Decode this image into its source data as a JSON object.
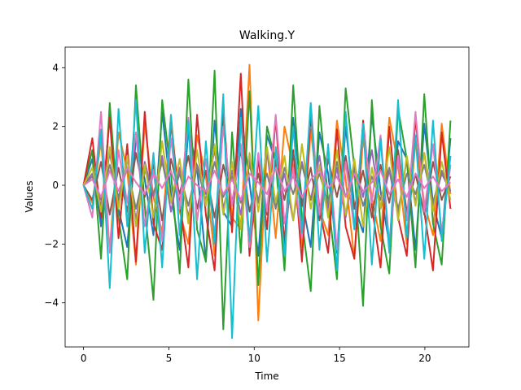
{
  "chart_data": {
    "type": "line",
    "title": "Walking.Y",
    "xlabel": "Time",
    "ylabel": "Values",
    "xlim": [
      -1.08,
      22.58
    ],
    "ylim": [
      -5.5,
      4.7
    ],
    "xticks": [
      0,
      5,
      10,
      15,
      20
    ],
    "yticks": [
      -4,
      -2,
      0,
      2,
      4
    ],
    "x_range": [
      0,
      21.5
    ],
    "grid": false,
    "legend": "none",
    "series": [
      {
        "color": "#1f77b4",
        "values": [
          0.0,
          0.9,
          -1.4,
          2.4,
          -0.8,
          -2.1,
          1.6,
          0.2,
          -1.7,
          2.5,
          -0.3,
          -2.2,
          1.9,
          0.6,
          -2.6,
          2.2,
          -0.9,
          -1.4,
          2.6,
          0.1,
          -2.4,
          1.7,
          0.8,
          -1.9,
          2.3,
          -0.5,
          -2.1,
          1.8,
          0.4,
          -2.3,
          2.0,
          -0.7,
          -1.6,
          2.4,
          -0.2,
          -2.0,
          1.5,
          0.9,
          -2.2,
          2.1,
          -0.6,
          -1.8,
          1.6
        ]
      },
      {
        "color": "#ff7f0e",
        "values": [
          0.0,
          -0.6,
          1.5,
          -2.2,
          1.8,
          0.5,
          -2.7,
          2.1,
          -0.4,
          -1.6,
          2.4,
          -0.9,
          -2.0,
          1.7,
          0.3,
          -2.4,
          2.2,
          -1.1,
          -1.5,
          4.1,
          -4.6,
          1.3,
          -1.8,
          2.0,
          0.6,
          -2.1,
          1.9,
          -0.8,
          -1.7,
          2.2,
          0.2,
          -2.5,
          1.6,
          -0.4,
          -1.9,
          2.3,
          0.7,
          -2.0,
          1.5,
          -0.6,
          -1.7,
          2.1,
          -0.3
        ]
      },
      {
        "color": "#2ca02c",
        "values": [
          0.0,
          1.2,
          -2.5,
          2.8,
          -1.1,
          -3.2,
          3.4,
          -0.7,
          -3.9,
          2.9,
          0.4,
          -3.0,
          3.6,
          -1.5,
          -2.6,
          3.9,
          -4.9,
          1.8,
          -2.3,
          3.2,
          -3.4,
          2.0,
          0.8,
          -2.9,
          3.4,
          -1.2,
          -3.6,
          2.7,
          -0.5,
          -3.2,
          3.3,
          0.6,
          -4.1,
          2.9,
          -1.4,
          -3.0,
          2.6,
          0.9,
          -2.8,
          3.1,
          -1.3,
          -2.7,
          2.2
        ]
      },
      {
        "color": "#d62728",
        "values": [
          0.0,
          1.6,
          -1.1,
          2.3,
          -1.8,
          1.4,
          -2.6,
          2.5,
          -1.3,
          -2.2,
          2.1,
          -0.6,
          -2.8,
          2.4,
          -1.0,
          -2.9,
          2.6,
          -1.6,
          3.8,
          -2.4,
          0.9,
          -1.5,
          2.3,
          -2.1,
          1.2,
          -2.6,
          2.4,
          -0.8,
          -2.3,
          1.9,
          -1.4,
          -2.5,
          2.2,
          -0.7,
          -2.8,
          2.0,
          -1.1,
          -2.4,
          2.3,
          -0.9,
          -2.9,
          1.8,
          -0.8
        ]
      },
      {
        "color": "#9467bd",
        "values": [
          0.0,
          0.4,
          -0.7,
          1.1,
          -0.5,
          0.9,
          -1.2,
          0.8,
          -0.4,
          1.0,
          -0.9,
          0.6,
          -1.1,
          0.7,
          -0.3,
          1.2,
          -0.8,
          0.5,
          -1.0,
          0.9,
          -0.6,
          1.1,
          -0.7,
          0.4,
          -1.2,
          0.8,
          -0.5,
          1.0,
          -0.9,
          0.6,
          -1.1,
          0.7,
          -0.4,
          1.2,
          -0.8,
          0.5,
          -1.0,
          0.9,
          -0.6,
          1.1,
          -0.7,
          0.4,
          -0.2
        ]
      },
      {
        "color": "#8c564b",
        "values": [
          0.0,
          -0.5,
          0.8,
          -1.0,
          0.6,
          -0.9,
          1.1,
          -0.4,
          0.7,
          -1.2,
          0.9,
          -0.3,
          1.0,
          -0.8,
          0.5,
          -1.1,
          0.7,
          -0.6,
          1.2,
          -0.9,
          0.4,
          -1.0,
          0.8,
          -0.5,
          1.1,
          -0.7,
          0.6,
          -1.2,
          0.9,
          -0.4,
          1.0,
          -0.8,
          0.5,
          -1.1,
          0.7,
          -0.6,
          1.2,
          -0.9,
          0.4,
          -1.0,
          0.8,
          -0.5,
          0.3
        ]
      },
      {
        "color": "#e377c2",
        "values": [
          0.0,
          -1.1,
          2.5,
          -2.3,
          1.2,
          -0.6,
          1.8,
          -1.4,
          0.5,
          -1.9,
          1.6,
          -0.8,
          2.3,
          -1.2,
          0.9,
          -1.7,
          2.0,
          -0.7,
          1.4,
          -2.1,
          1.1,
          -0.9,
          2.4,
          -1.3,
          0.6,
          -1.8,
          2.8,
          -1.0,
          1.3,
          -2.2,
          0.8,
          -1.5,
          2.1,
          -0.6,
          1.7,
          -2.0,
          1.0,
          -1.2,
          2.5,
          -0.9,
          1.4,
          -1.6,
          0.7
        ]
      },
      {
        "color": "#7f7f7f",
        "values": [
          0.0,
          0.3,
          -0.5,
          0.7,
          -0.4,
          0.6,
          -0.8,
          0.5,
          -0.3,
          0.8,
          -0.6,
          0.4,
          -0.7,
          0.6,
          -0.5,
          0.8,
          -0.4,
          0.3,
          -0.6,
          0.7,
          -0.5,
          0.4,
          -0.8,
          0.6,
          -0.3,
          0.7,
          -0.5,
          0.4,
          -0.6,
          0.8,
          -0.4,
          0.5,
          -0.7,
          0.3,
          -0.5,
          0.6,
          -0.8,
          0.4,
          -0.3,
          0.7,
          -0.6,
          0.5,
          -0.2
        ]
      },
      {
        "color": "#bcbd22",
        "values": [
          0.0,
          0.6,
          -0.9,
          1.3,
          -0.8,
          1.0,
          -1.4,
          0.7,
          -1.1,
          1.5,
          -0.6,
          0.9,
          -1.3,
          1.2,
          -0.7,
          1.4,
          -1.0,
          0.8,
          -1.5,
          1.1,
          -0.9,
          1.3,
          -0.6,
          1.0,
          -1.2,
          1.4,
          -0.8,
          0.7,
          -1.1,
          1.2,
          -1.0,
          0.9,
          -1.4,
          0.6,
          -0.8,
          1.3,
          -1.2,
          1.0,
          -0.7,
          1.1,
          -0.9,
          0.8,
          -0.5
        ]
      },
      {
        "color": "#17becf",
        "values": [
          0.0,
          -0.8,
          1.9,
          -3.5,
          2.6,
          -1.4,
          2.9,
          -2.3,
          1.1,
          -2.8,
          2.4,
          -1.7,
          2.2,
          -3.2,
          1.5,
          -2.0,
          3.1,
          -5.2,
          2.3,
          -1.9,
          2.7,
          -2.6,
          1.3,
          -2.4,
          2.0,
          -1.6,
          2.8,
          -2.2,
          1.4,
          -2.9,
          2.5,
          -1.5,
          2.1,
          -2.7,
          1.6,
          -2.3,
          2.9,
          -1.8,
          1.7,
          -2.5,
          2.2,
          -1.9,
          1.0
        ]
      },
      {
        "color": "#e377c2",
        "values": [
          0.0,
          0.2,
          -0.4,
          0.5,
          -0.2,
          0.6,
          0.1,
          -0.3,
          0.4,
          -0.1,
          0.5,
          -0.4,
          0.3,
          0.0,
          -0.2,
          0.5,
          -0.3,
          0.2,
          -0.5,
          0.4,
          0.1,
          -0.3,
          0.6,
          -0.2,
          0.3,
          -0.4,
          0.2,
          0.5,
          -0.1,
          0.3,
          -0.4,
          0.4,
          -0.2,
          0.1,
          0.5,
          -0.3,
          0.2,
          -0.4,
          0.4,
          -0.1,
          0.3,
          -0.2,
          0.1
        ]
      }
    ]
  }
}
